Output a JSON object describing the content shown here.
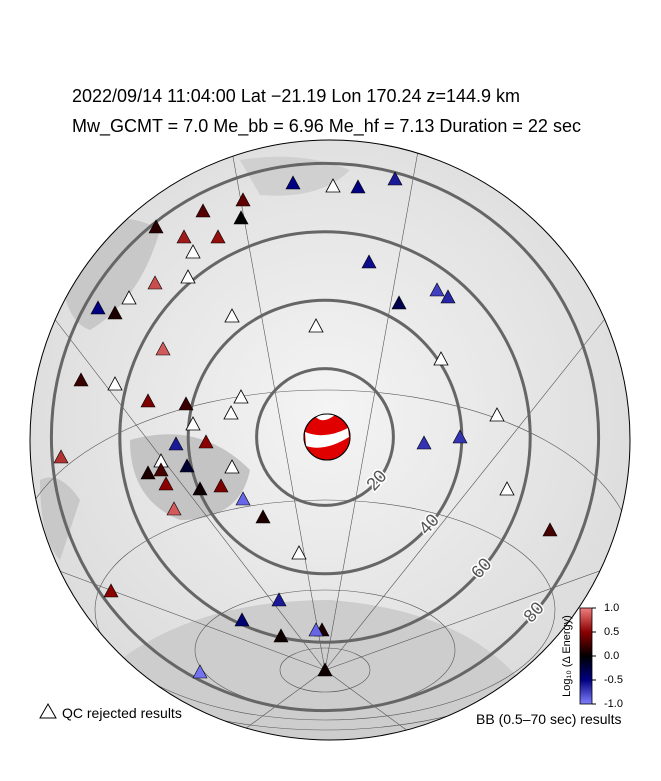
{
  "header": {
    "line1": "2022/09/14  11:04:00   Lat −21.19   Lon 170.24   z=144.9 km",
    "line2": "Mw_GCMT = 7.0   Me_bb = 6.96   Me_hf = 7.13   Duration = 22 sec"
  },
  "ring_labels": [
    20,
    40,
    60,
    80
  ],
  "station_values": [
    -0.5,
    -0.5,
    -0.6,
    0.35,
    0.3,
    0,
    0.15,
    0.6,
    0.55,
    -0.55,
    0.8,
    -0.5,
    0.1,
    -0.3,
    -0.75,
    -0.65,
    0.85,
    0.2,
    0.45,
    0.2,
    0.5,
    -0.6,
    -0.7,
    -0.7,
    0.7,
    -0.2,
    0.1,
    0.25,
    0.5,
    0.05,
    0.45,
    -0.9,
    0.1,
    0.85,
    0.25,
    0.5,
    -0.6,
    -0.45,
    0.05,
    0.1,
    -0.9,
    0.05,
    -0.95
  ],
  "colorbar": {
    "label": "Log₁₀ (Δ Energy)",
    "lim": [
      -1,
      1
    ],
    "ticks": [
      {
        "value": 1,
        "label": "1.0"
      },
      {
        "value": 0.5,
        "label": "0.5"
      },
      {
        "value": 0,
        "label": "0.0"
      },
      {
        "value": -0.5,
        "label": "-0.5"
      },
      {
        "value": -1,
        "label": "-1.0"
      }
    ]
  },
  "legend_qc": "QC rejected results",
  "legend_bb": "BB (0.5–70 sec) results"
}
